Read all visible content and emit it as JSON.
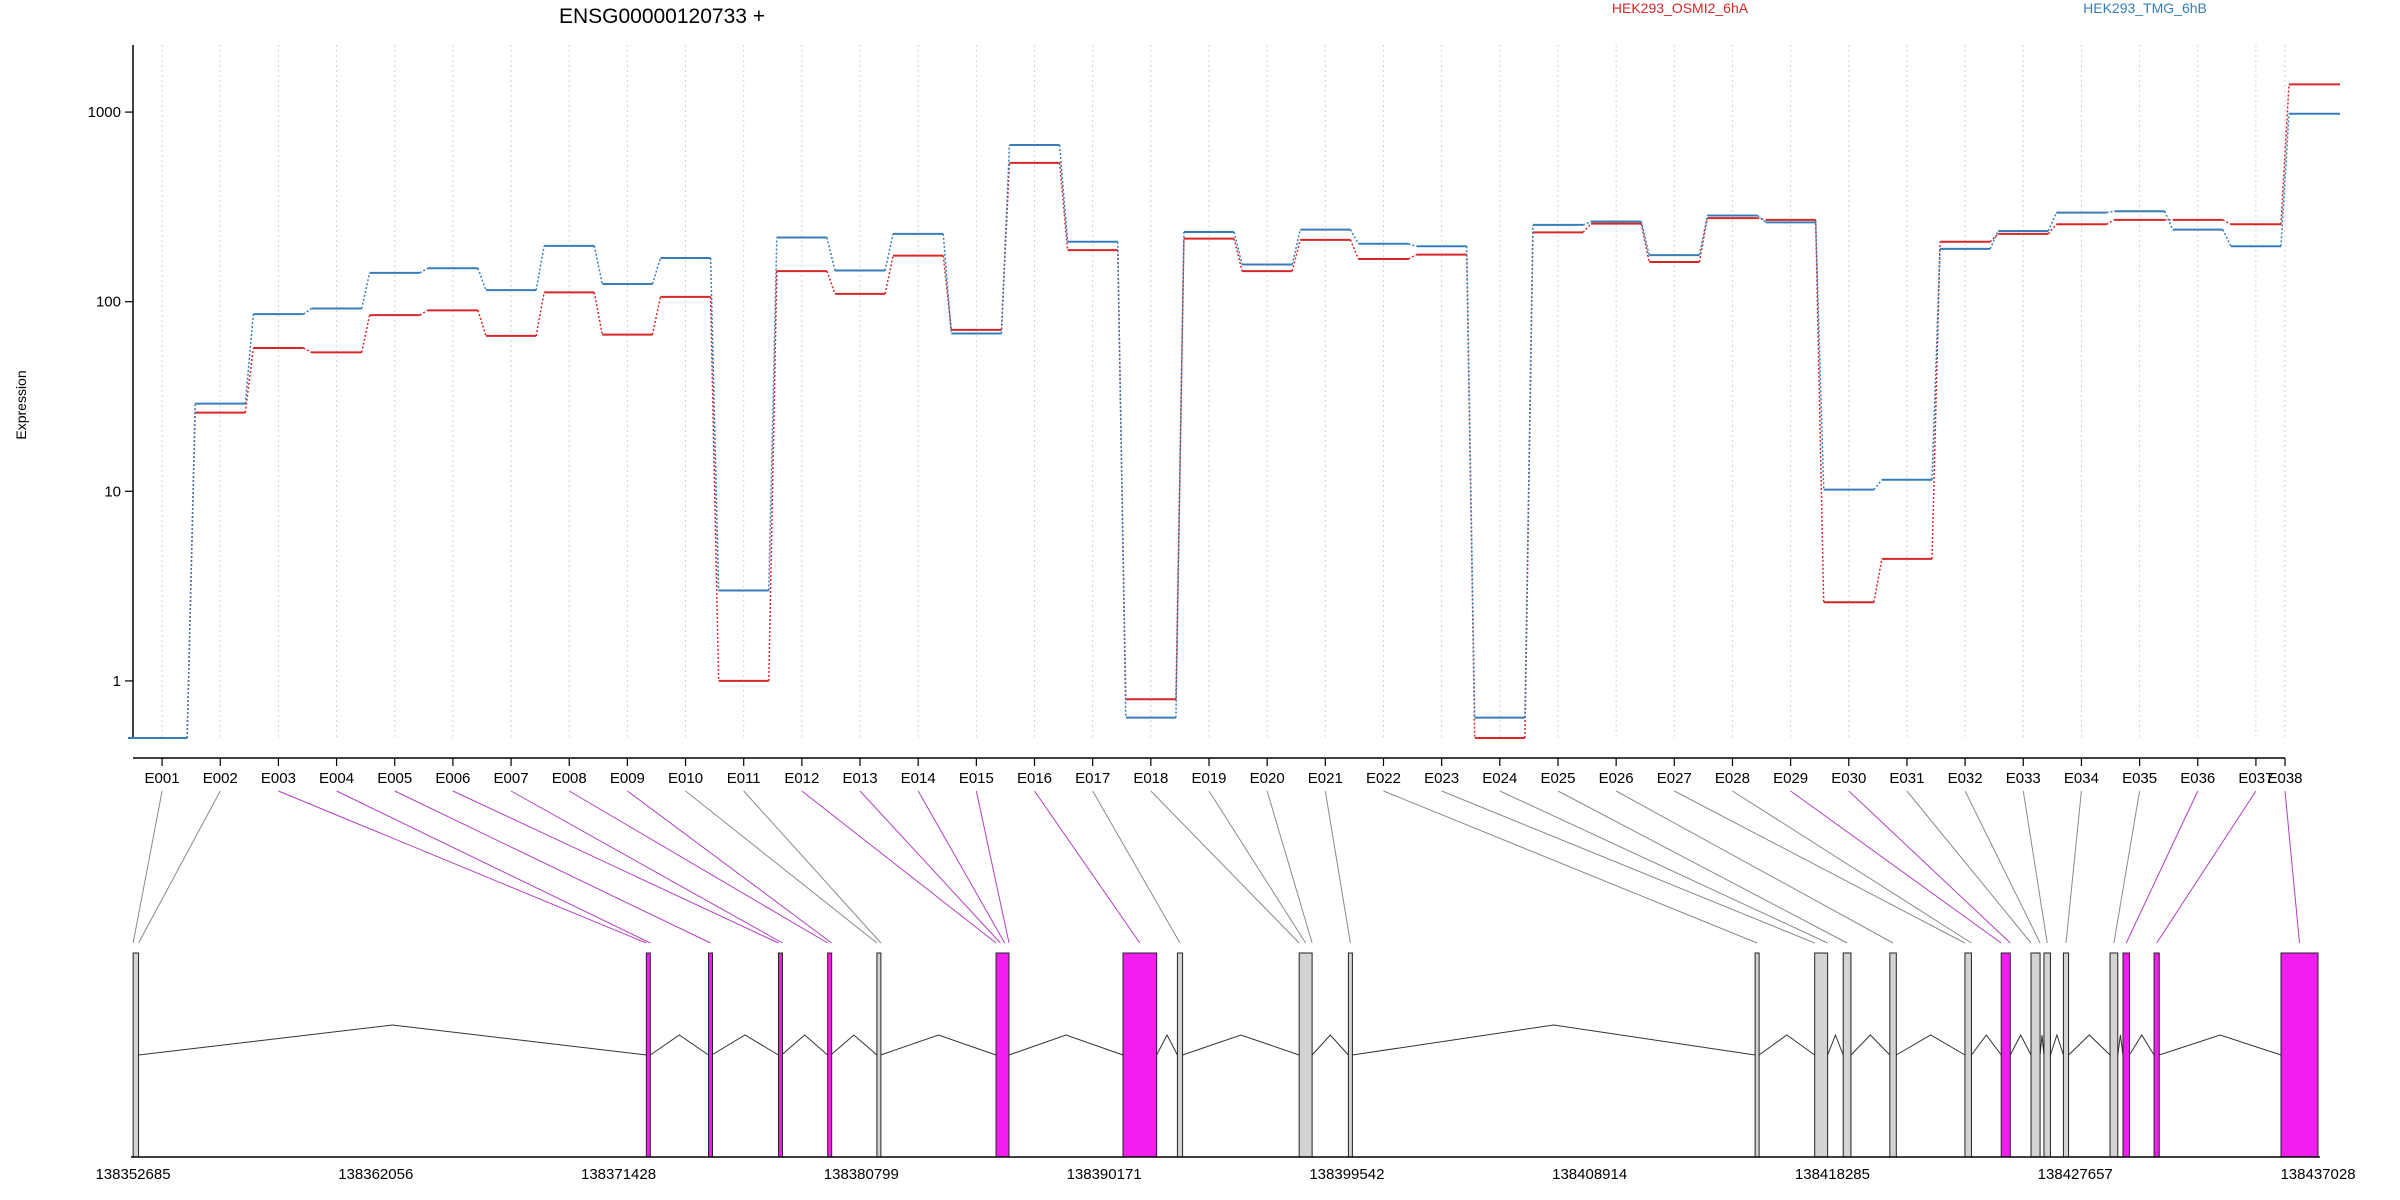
{
  "chart_data": {
    "type": "line",
    "title": "ENSG00000120733 +",
    "ylabel": "Expression",
    "xlabel": "",
    "y_scale": "log",
    "ylim": [
      0.5,
      2000
    ],
    "y_ticks": [
      "1",
      "10",
      "100",
      "1000"
    ],
    "grid": "vertical dotted lines at exon bins",
    "legend_position": "top",
    "categories": [
      "E001",
      "E002",
      "E003",
      "E004",
      "E005",
      "E006",
      "E007",
      "E008",
      "E009",
      "E010",
      "E011",
      "E012",
      "E013",
      "E014",
      "E015",
      "E016",
      "E017",
      "E018",
      "E019",
      "E020",
      "E021",
      "E022",
      "E023",
      "E024",
      "E025",
      "E026",
      "E027",
      "E028",
      "E029",
      "E030",
      "E031",
      "E032",
      "E033",
      "E034",
      "E035",
      "E036",
      "E037",
      "E038"
    ],
    "series": [
      {
        "name": "HEK293_OSMI2_6hA",
        "color": "#d62728",
        "values": [
          0.5,
          26,
          57,
          54,
          85,
          90,
          66,
          112,
          67,
          106,
          1.0,
          145,
          110,
          175,
          71,
          540,
          187,
          0.8,
          215,
          145,
          212,
          168,
          177,
          0.5,
          232,
          258,
          162,
          276,
          270,
          2.6,
          4.4,
          207,
          228,
          256,
          270,
          270,
          256,
          1400
        ]
      },
      {
        "name": "HEK293_TMG_6hB",
        "color": "#377eb8",
        "values": [
          0.5,
          29,
          86,
          92,
          142,
          150,
          115,
          197,
          124,
          170,
          3.0,
          218,
          146,
          228,
          68,
          670,
          207,
          0.64,
          233,
          157,
          240,
          202,
          196,
          0.64,
          254,
          265,
          176,
          285,
          262,
          10.2,
          11.5,
          190,
          236,
          295,
          300,
          240,
          196,
          980
        ]
      }
    ],
    "genome_axis": {
      "tick_labels": [
        "138352685",
        "138362056",
        "138371428",
        "138380799",
        "138390171",
        "138399542",
        "138408914",
        "138418285",
        "138427657",
        "138437028"
      ],
      "start": 138352685,
      "end": 138437028
    },
    "gene_model": {
      "highlight_color": "#f21ef0",
      "exons": [
        {
          "start": 138352690,
          "end": 138352900,
          "highlight": false,
          "bins": [
            "E001",
            "E002"
          ]
        },
        {
          "start": 138372500,
          "end": 138372650,
          "highlight": true,
          "bins": [
            "E003",
            "E004"
          ]
        },
        {
          "start": 138374900,
          "end": 138375020,
          "highlight": true,
          "bins": [
            "E005"
          ]
        },
        {
          "start": 138377600,
          "end": 138377720,
          "highlight": true,
          "bins": [
            "E006",
            "E007"
          ]
        },
        {
          "start": 138379500,
          "end": 138379620,
          "highlight": true,
          "bins": [
            "E008",
            "E009"
          ]
        },
        {
          "start": 138381400,
          "end": 138381550,
          "highlight": false,
          "bins": [
            "E010",
            "E011"
          ]
        },
        {
          "start": 138386000,
          "end": 138386500,
          "highlight": true,
          "bins": [
            "E012",
            "E013",
            "E014",
            "E015"
          ]
        },
        {
          "start": 138390900,
          "end": 138392200,
          "highlight": true,
          "bins": [
            "E016"
          ]
        },
        {
          "start": 138393000,
          "end": 138393200,
          "highlight": false,
          "bins": [
            "E017"
          ]
        },
        {
          "start": 138397700,
          "end": 138398200,
          "highlight": false,
          "bins": [
            "E018",
            "E019",
            "E020"
          ]
        },
        {
          "start": 138399600,
          "end": 138399750,
          "highlight": false,
          "bins": [
            "E021"
          ]
        },
        {
          "start": 138415300,
          "end": 138415450,
          "highlight": false,
          "bins": [
            "E022"
          ]
        },
        {
          "start": 138417600,
          "end": 138418100,
          "highlight": false,
          "bins": [
            "E023",
            "E024"
          ]
        },
        {
          "start": 138418700,
          "end": 138419000,
          "highlight": false,
          "bins": [
            "E025"
          ]
        },
        {
          "start": 138420500,
          "end": 138420750,
          "highlight": false,
          "bins": [
            "E026"
          ]
        },
        {
          "start": 138423400,
          "end": 138423650,
          "highlight": false,
          "bins": [
            "E027",
            "E028"
          ]
        },
        {
          "start": 138424800,
          "end": 138425150,
          "highlight": true,
          "bins": [
            "E029",
            "E030"
          ]
        },
        {
          "start": 138425950,
          "end": 138426300,
          "highlight": false,
          "bins": [
            "E031",
            "E032"
          ]
        },
        {
          "start": 138426450,
          "end": 138426700,
          "highlight": false,
          "bins": [
            "E033"
          ]
        },
        {
          "start": 138427200,
          "end": 138427400,
          "highlight": false,
          "bins": [
            "E034"
          ]
        },
        {
          "start": 138429000,
          "end": 138429300,
          "highlight": false,
          "bins": [
            "E035"
          ]
        },
        {
          "start": 138429500,
          "end": 138429750,
          "highlight": true,
          "bins": [
            "E036"
          ]
        },
        {
          "start": 138430700,
          "end": 138430900,
          "highlight": true,
          "bins": [
            "E037"
          ]
        },
        {
          "start": 138435600,
          "end": 138437028,
          "highlight": true,
          "bins": [
            "E038"
          ]
        }
      ]
    }
  }
}
